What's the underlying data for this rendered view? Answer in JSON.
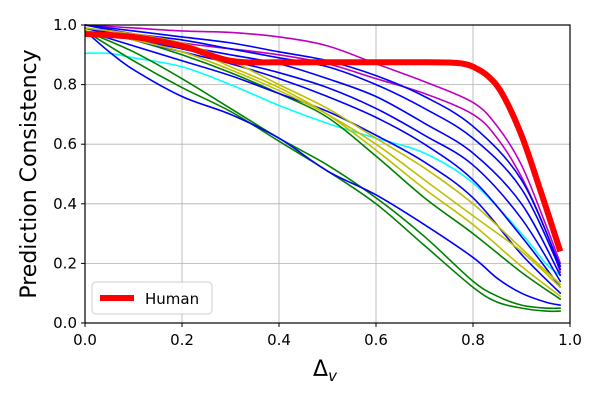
{
  "chart_data": {
    "type": "line",
    "xlabel": "Δ",
    "xlabel_subscript": "v",
    "ylabel": "Prediction Consistency",
    "xlim": [
      0,
      1
    ],
    "ylim": [
      0,
      1
    ],
    "xticks": [
      "0.0",
      "0.2",
      "0.4",
      "0.6",
      "0.8",
      "1.0"
    ],
    "yticks": [
      "0.0",
      "0.2",
      "0.4",
      "0.6",
      "0.8",
      "1.0"
    ],
    "grid": true,
    "legend": {
      "location": "lower-left",
      "entries": [
        "Human"
      ]
    },
    "series": [
      {
        "name": "Human",
        "color": "#ff0000",
        "thick": true,
        "x": [
          0.0,
          0.1,
          0.2,
          0.3,
          0.4,
          0.5,
          0.6,
          0.7,
          0.75,
          0.78,
          0.8,
          0.83,
          0.86,
          0.9,
          0.94,
          0.98
        ],
        "y": [
          0.97,
          0.96,
          0.93,
          0.88,
          0.875,
          0.875,
          0.875,
          0.875,
          0.874,
          0.87,
          0.86,
          0.83,
          0.77,
          0.63,
          0.44,
          0.24
        ]
      },
      {
        "name": "magenta-1",
        "color": "#bf00bf",
        "x": [
          0.0,
          0.1,
          0.2,
          0.3,
          0.4,
          0.5,
          0.6,
          0.7,
          0.8,
          0.85,
          0.9,
          0.95,
          0.98
        ],
        "y": [
          1.0,
          0.99,
          0.98,
          0.975,
          0.96,
          0.93,
          0.87,
          0.81,
          0.74,
          0.66,
          0.53,
          0.33,
          0.2
        ]
      },
      {
        "name": "magenta-2",
        "color": "#bf00bf",
        "x": [
          0.0,
          0.1,
          0.2,
          0.3,
          0.4,
          0.5,
          0.6,
          0.7,
          0.8,
          0.85,
          0.9,
          0.95,
          0.98
        ],
        "y": [
          1.0,
          0.97,
          0.94,
          0.92,
          0.9,
          0.87,
          0.82,
          0.77,
          0.7,
          0.62,
          0.49,
          0.31,
          0.17
        ]
      },
      {
        "name": "cyan",
        "color": "#00ffff",
        "x": [
          0.0,
          0.05,
          0.1,
          0.2,
          0.3,
          0.4,
          0.5,
          0.6,
          0.7,
          0.8,
          0.9,
          0.95,
          0.98
        ],
        "y": [
          0.905,
          0.905,
          0.89,
          0.86,
          0.8,
          0.73,
          0.67,
          0.62,
          0.57,
          0.47,
          0.3,
          0.2,
          0.16
        ]
      },
      {
        "name": "green-1",
        "color": "#008000",
        "x": [
          0.0,
          0.1,
          0.2,
          0.3,
          0.4,
          0.5,
          0.6,
          0.7,
          0.8,
          0.85,
          0.9,
          0.95,
          0.98
        ],
        "y": [
          0.98,
          0.88,
          0.79,
          0.71,
          0.61,
          0.51,
          0.4,
          0.26,
          0.12,
          0.07,
          0.05,
          0.04,
          0.04
        ]
      },
      {
        "name": "green-2",
        "color": "#008000",
        "x": [
          0.0,
          0.1,
          0.2,
          0.3,
          0.4,
          0.5,
          0.6,
          0.7,
          0.8,
          0.85,
          0.9,
          0.95,
          0.98
        ],
        "y": [
          0.98,
          0.91,
          0.82,
          0.72,
          0.62,
          0.53,
          0.42,
          0.29,
          0.14,
          0.09,
          0.06,
          0.05,
          0.05
        ]
      },
      {
        "name": "green-3",
        "color": "#008000",
        "x": [
          0.0,
          0.1,
          0.2,
          0.3,
          0.4,
          0.5,
          0.6,
          0.7,
          0.8,
          0.9,
          0.98
        ],
        "y": [
          0.99,
          0.95,
          0.9,
          0.84,
          0.77,
          0.69,
          0.56,
          0.42,
          0.3,
          0.17,
          0.08
        ]
      },
      {
        "name": "blue-1",
        "color": "#0000ff",
        "x": [
          0.0,
          0.05,
          0.1,
          0.2,
          0.3,
          0.4,
          0.5,
          0.6,
          0.7,
          0.8,
          0.85,
          0.9,
          0.95,
          0.98
        ],
        "y": [
          0.98,
          0.91,
          0.85,
          0.76,
          0.7,
          0.62,
          0.51,
          0.43,
          0.33,
          0.22,
          0.15,
          0.1,
          0.07,
          0.06
        ]
      },
      {
        "name": "blue-2",
        "color": "#0000ff",
        "x": [
          0.0,
          0.1,
          0.2,
          0.3,
          0.4,
          0.5,
          0.6,
          0.7,
          0.8,
          0.9,
          0.98
        ],
        "y": [
          0.98,
          0.93,
          0.88,
          0.83,
          0.77,
          0.71,
          0.63,
          0.54,
          0.42,
          0.23,
          0.1
        ]
      },
      {
        "name": "blue-3",
        "color": "#0000ff",
        "x": [
          0.0,
          0.1,
          0.2,
          0.3,
          0.4,
          0.5,
          0.6,
          0.7,
          0.8,
          0.9,
          0.98
        ],
        "y": [
          0.99,
          0.95,
          0.91,
          0.87,
          0.82,
          0.76,
          0.69,
          0.6,
          0.48,
          0.29,
          0.12
        ]
      },
      {
        "name": "blue-4",
        "color": "#0000ff",
        "x": [
          0.0,
          0.1,
          0.2,
          0.3,
          0.4,
          0.5,
          0.6,
          0.7,
          0.8,
          0.9,
          0.98
        ],
        "y": [
          0.99,
          0.95,
          0.92,
          0.88,
          0.84,
          0.79,
          0.72,
          0.63,
          0.53,
          0.35,
          0.14
        ]
      },
      {
        "name": "blue-5",
        "color": "#0000ff",
        "x": [
          0.0,
          0.1,
          0.2,
          0.3,
          0.4,
          0.5,
          0.6,
          0.7,
          0.8,
          0.9,
          0.98
        ],
        "y": [
          0.99,
          0.96,
          0.93,
          0.9,
          0.87,
          0.82,
          0.76,
          0.67,
          0.57,
          0.4,
          0.16
        ]
      },
      {
        "name": "blue-6",
        "color": "#0000ff",
        "x": [
          0.0,
          0.1,
          0.2,
          0.3,
          0.4,
          0.5,
          0.6,
          0.7,
          0.8,
          0.9,
          0.98
        ],
        "y": [
          1.0,
          0.97,
          0.95,
          0.92,
          0.89,
          0.86,
          0.8,
          0.72,
          0.62,
          0.45,
          0.18
        ]
      },
      {
        "name": "blue-7",
        "color": "#0000ff",
        "x": [
          0.0,
          0.1,
          0.2,
          0.3,
          0.4,
          0.5,
          0.6,
          0.7,
          0.8,
          0.9,
          0.98
        ],
        "y": [
          1.0,
          0.98,
          0.96,
          0.94,
          0.91,
          0.88,
          0.83,
          0.76,
          0.66,
          0.48,
          0.19
        ]
      },
      {
        "name": "yellow-1",
        "color": "#bfbf00",
        "x": [
          0.0,
          0.1,
          0.2,
          0.3,
          0.4,
          0.5,
          0.6,
          0.7,
          0.8,
          0.9,
          0.98
        ],
        "y": [
          0.99,
          0.97,
          0.94,
          0.88,
          0.8,
          0.72,
          0.62,
          0.52,
          0.4,
          0.25,
          0.13
        ]
      },
      {
        "name": "yellow-2",
        "color": "#bfbf00",
        "x": [
          0.0,
          0.1,
          0.2,
          0.3,
          0.4,
          0.5,
          0.6,
          0.7,
          0.8,
          0.9,
          0.98
        ],
        "y": [
          0.98,
          0.96,
          0.93,
          0.86,
          0.79,
          0.7,
          0.58,
          0.45,
          0.33,
          0.19,
          0.09
        ]
      },
      {
        "name": "yellow-3",
        "color": "#bfbf00",
        "x": [
          0.0,
          0.1,
          0.2,
          0.3,
          0.4,
          0.5,
          0.6,
          0.7,
          0.8,
          0.9,
          0.98
        ],
        "y": [
          0.98,
          0.95,
          0.91,
          0.85,
          0.78,
          0.7,
          0.6,
          0.48,
          0.36,
          0.24,
          0.12
        ]
      }
    ]
  }
}
